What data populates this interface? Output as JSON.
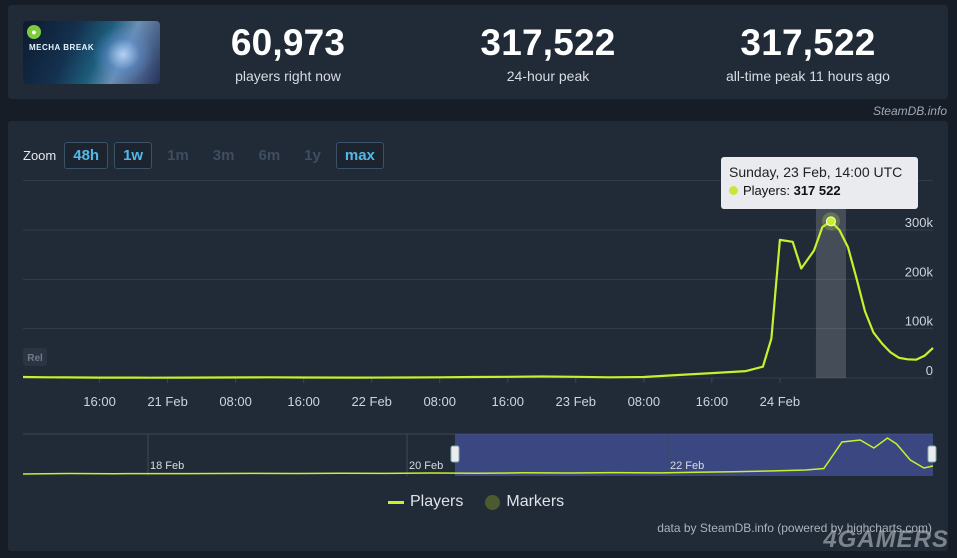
{
  "game": {
    "logo_text": "MECHA BREAK",
    "badge": "●"
  },
  "stats": {
    "now": {
      "value": "60,973",
      "label": "players right now"
    },
    "peak24": {
      "value": "317,522",
      "label": "24-hour peak"
    },
    "alltime": {
      "value": "317,522",
      "label": "all-time peak 11 hours ago"
    }
  },
  "credit_top": "SteamDB.info",
  "zoom": {
    "label": "Zoom",
    "buttons": [
      {
        "label": "48h",
        "active": true
      },
      {
        "label": "1w",
        "active": true
      },
      {
        "label": "1m",
        "active": false
      },
      {
        "label": "3m",
        "active": false
      },
      {
        "label": "6m",
        "active": false
      },
      {
        "label": "1y",
        "active": false
      },
      {
        "label": "max",
        "active": true
      }
    ]
  },
  "tooltip": {
    "title": "Sunday, 23 Feb, 14:00 UTC",
    "series": "Players:",
    "value": "317 522"
  },
  "rel_label": "Rel",
  "legend": {
    "players": "Players",
    "markers": "Markers"
  },
  "credit_bottom": "data by SteamDB.info (powered by highcharts.com)",
  "watermark": "4GAMERS",
  "colors": {
    "line": "#c8f02c",
    "background": "#212a37",
    "accent": "#52b8ea"
  },
  "chart_data": {
    "type": "line",
    "x_tick_labels": [
      "16:00",
      "21 Feb",
      "08:00",
      "16:00",
      "22 Feb",
      "08:00",
      "16:00",
      "23 Feb",
      "08:00",
      "16:00",
      "24 Feb"
    ],
    "y_tick_labels": [
      "0",
      "100k",
      "200k",
      "300k"
    ],
    "ylim": [
      0,
      300000
    ],
    "x_unit": "hours since 20 Feb 08:00 UTC",
    "series": [
      {
        "name": "Players",
        "points": [
          [
            -1,
            2000
          ],
          [
            2,
            1500
          ],
          [
            4,
            1200
          ],
          [
            8,
            800
          ],
          [
            12,
            900
          ],
          [
            14,
            700
          ],
          [
            18,
            900
          ],
          [
            22,
            1000
          ],
          [
            26,
            1200
          ],
          [
            28,
            1500
          ],
          [
            32,
            1000
          ],
          [
            38,
            900
          ],
          [
            44,
            1000
          ],
          [
            48,
            1500
          ],
          [
            52,
            2000
          ],
          [
            56,
            2500
          ],
          [
            60,
            3000
          ],
          [
            64,
            2500
          ],
          [
            68,
            1500
          ],
          [
            72,
            2000
          ],
          [
            76,
            6000
          ],
          [
            80,
            10000
          ],
          [
            84,
            14000
          ],
          [
            86,
            23000
          ],
          [
            87,
            80000
          ],
          [
            88,
            280000
          ],
          [
            89.5,
            276000
          ],
          [
            90.5,
            222000
          ],
          [
            92,
            258000
          ],
          [
            93,
            306000
          ],
          [
            94,
            317522
          ],
          [
            95,
            300000
          ],
          [
            96,
            265000
          ],
          [
            97,
            202000
          ],
          [
            98,
            135000
          ],
          [
            99,
            92000
          ],
          [
            100,
            70000
          ],
          [
            101,
            52000
          ],
          [
            102,
            41000
          ],
          [
            103,
            38000
          ],
          [
            104,
            37000
          ],
          [
            105,
            45000
          ],
          [
            106,
            61000
          ]
        ]
      }
    ],
    "highlight": {
      "x": 94,
      "y": 317522
    },
    "navigator": {
      "labels": [
        "18 Feb",
        "20 Feb",
        "22 Feb"
      ],
      "series": [
        [
          0.0,
          0
        ],
        [
          0.05,
          0.5
        ],
        [
          0.1,
          0.3
        ],
        [
          0.18,
          0.4
        ],
        [
          0.25,
          0.6
        ],
        [
          0.3,
          0.5
        ],
        [
          0.35,
          0.8
        ],
        [
          0.4,
          0.6
        ],
        [
          0.45,
          1.0
        ],
        [
          0.5,
          0.7
        ],
        [
          0.55,
          1.2
        ],
        [
          0.6,
          1.0
        ],
        [
          0.65,
          1.4
        ],
        [
          0.7,
          1.1
        ],
        [
          0.74,
          1.8
        ],
        [
          0.78,
          2.2
        ],
        [
          0.82,
          3.0
        ],
        [
          0.86,
          4.0
        ],
        [
          0.88,
          5.5
        ],
        [
          0.9,
          32
        ],
        [
          0.92,
          34
        ],
        [
          0.935,
          26
        ],
        [
          0.95,
          36
        ],
        [
          0.96,
          30
        ],
        [
          0.975,
          14
        ],
        [
          0.99,
          6
        ],
        [
          1.0,
          8
        ]
      ]
    }
  }
}
